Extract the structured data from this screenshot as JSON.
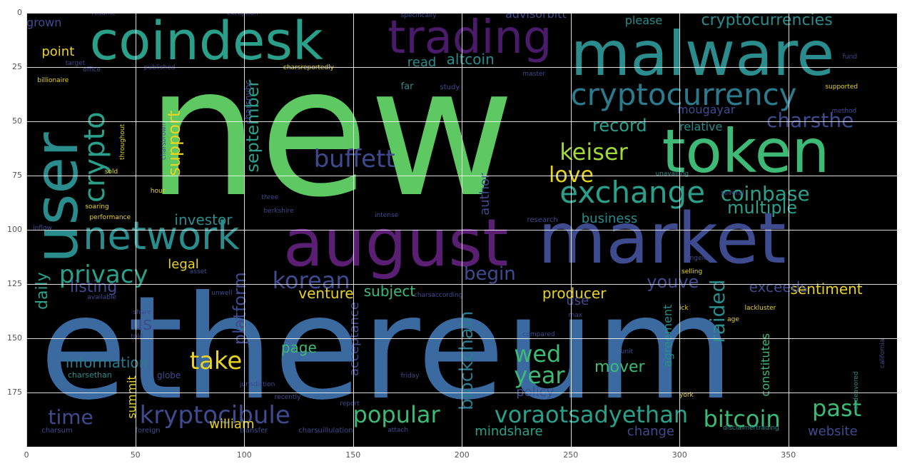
{
  "figure": {
    "colors": {
      "background": "#000000",
      "grid": "#ffffff",
      "tick_text": "#555555"
    },
    "x_ticks": [
      "0",
      "50",
      "100",
      "150",
      "200",
      "250",
      "300",
      "350"
    ],
    "y_ticks": [
      "0",
      "25",
      "50",
      "75",
      "100",
      "125",
      "150",
      "175"
    ],
    "x_range": [
      0,
      400
    ],
    "y_range": [
      0,
      200
    ],
    "grid": true,
    "words": [
      {
        "text": "new",
        "x": 55,
        "y": 14,
        "size": 250,
        "color": "#5ec962",
        "rot": 0
      },
      {
        "text": "ethereum",
        "x": 6,
        "y": 122,
        "size": 200,
        "color": "#3b6aa0",
        "rot": 0
      },
      {
        "text": "malware",
        "x": 250,
        "y": 5,
        "size": 86,
        "color": "#2a8c8c",
        "rot": 0
      },
      {
        "text": "market",
        "x": 235,
        "y": 88,
        "size": 98,
        "color": "#3f4b8f",
        "rot": 0
      },
      {
        "text": "august",
        "x": 118,
        "y": 91,
        "size": 92,
        "color": "#5a1f72",
        "rot": 0
      },
      {
        "text": "coindesk",
        "x": 29,
        "y": 1,
        "size": 74,
        "color": "#2aa08a",
        "rot": 0
      },
      {
        "text": "trading",
        "x": 166,
        "y": 1,
        "size": 64,
        "color": "#4a1a6b",
        "rot": 0
      },
      {
        "text": "token",
        "x": 292,
        "y": 50,
        "size": 84,
        "color": "#3dbb76",
        "rot": 0
      },
      {
        "text": "user",
        "x": 0,
        "y": 49,
        "size": 84,
        "color": "#2a8c8c",
        "rot": -90
      },
      {
        "text": "network",
        "x": 26,
        "y": 94,
        "size": 54,
        "color": "#2a8c8c",
        "rot": 0
      },
      {
        "text": "cryptocurrency",
        "x": 250,
        "y": 31,
        "size": 42,
        "color": "#2c7a8e",
        "rot": 0
      },
      {
        "text": "exchange",
        "x": 245,
        "y": 76,
        "size": 42,
        "color": "#2aa08a",
        "rot": 0
      },
      {
        "text": "crypto",
        "x": 25,
        "y": 40,
        "size": 40,
        "color": "#2aa08a",
        "rot": -90
      },
      {
        "text": "privacy",
        "x": 15,
        "y": 115,
        "size": 34,
        "color": "#2aa08a",
        "rot": 0
      },
      {
        "text": "buffett",
        "x": 132,
        "y": 62,
        "size": 34,
        "color": "#3f4b8f",
        "rot": 0
      },
      {
        "text": "keiser",
        "x": 245,
        "y": 59,
        "size": 32,
        "color": "#9fd938",
        "rot": 0
      },
      {
        "text": "love",
        "x": 240,
        "y": 70,
        "size": 30,
        "color": "#e8d31f",
        "rot": 0
      },
      {
        "text": "korean",
        "x": 113,
        "y": 118,
        "size": 32,
        "color": "#3f4b8f",
        "rot": 0
      },
      {
        "text": "take",
        "x": 75,
        "y": 155,
        "size": 34,
        "color": "#e8d31f",
        "rot": 0
      },
      {
        "text": "kryptocibule",
        "x": 52,
        "y": 180,
        "size": 34,
        "color": "#3f4b8f",
        "rot": 0
      },
      {
        "text": "popular",
        "x": 150,
        "y": 180,
        "size": 32,
        "color": "#3dbb76",
        "rot": 0
      },
      {
        "text": "voraotsadyethan",
        "x": 215,
        "y": 180,
        "size": 32,
        "color": "#2aa08a",
        "rot": 0
      },
      {
        "text": "bitcoin",
        "x": 311,
        "y": 182,
        "size": 32,
        "color": "#3dbb76",
        "rot": 0
      },
      {
        "text": "past",
        "x": 361,
        "y": 177,
        "size": 32,
        "color": "#3dbb76",
        "rot": 0
      },
      {
        "text": "year",
        "x": 224,
        "y": 162,
        "size": 32,
        "color": "#3dbb76",
        "rot": 0
      },
      {
        "text": "wed",
        "x": 224,
        "y": 152,
        "size": 32,
        "color": "#3dbb76",
        "rot": 0
      },
      {
        "text": "time",
        "x": 10,
        "y": 182,
        "size": 28,
        "color": "#3f4b8f",
        "rot": 0
      },
      {
        "text": "coinbase",
        "x": 319,
        "y": 79,
        "size": 28,
        "color": "#2aa08a",
        "rot": 0
      },
      {
        "text": "multiple",
        "x": 322,
        "y": 86,
        "size": 24,
        "color": "#2aa08a",
        "rot": 0
      },
      {
        "text": "charsthe",
        "x": 340,
        "y": 45,
        "size": 28,
        "color": "#3f4b8f",
        "rot": 0
      },
      {
        "text": "record",
        "x": 260,
        "y": 48,
        "size": 24,
        "color": "#2aa08a",
        "rot": 0
      },
      {
        "text": "support",
        "x": 64,
        "y": 42,
        "size": 24,
        "color": "#e8d31f",
        "rot": -90
      },
      {
        "text": "september",
        "x": 100,
        "y": 31,
        "size": 24,
        "color": "#2aa08a",
        "rot": -90
      },
      {
        "text": "blockchain",
        "x": 198,
        "y": 132,
        "size": 26,
        "color": "#2c7a8e",
        "rot": -90
      },
      {
        "text": "platform",
        "x": 94,
        "y": 115,
        "size": 24,
        "color": "#3f4b8f",
        "rot": -90
      },
      {
        "text": "raided",
        "x": 313,
        "y": 119,
        "size": 28,
        "color": "#2a8c8c",
        "rot": -90
      },
      {
        "text": "begin",
        "x": 201,
        "y": 116,
        "size": 26,
        "color": "#3f4b8f",
        "rot": 0
      },
      {
        "text": "youve",
        "x": 285,
        "y": 120,
        "size": 24,
        "color": "#3f4b8f",
        "rot": 0
      },
      {
        "text": "sentiment",
        "x": 351,
        "y": 124,
        "size": 20,
        "color": "#e8d31f",
        "rot": 0
      },
      {
        "text": "exceeds",
        "x": 332,
        "y": 123,
        "size": 20,
        "color": "#3f4b8f",
        "rot": 0
      },
      {
        "text": "producer",
        "x": 237,
        "y": 126,
        "size": 20,
        "color": "#e8d31f",
        "rot": 0
      },
      {
        "text": "venture",
        "x": 125,
        "y": 126,
        "size": 20,
        "color": "#e8d31f",
        "rot": 0
      },
      {
        "text": "subject",
        "x": 155,
        "y": 125,
        "size": 20,
        "color": "#3dbb76",
        "rot": 0
      },
      {
        "text": "listing",
        "x": 20,
        "y": 123,
        "size": 22,
        "color": "#3f4b8f",
        "rot": 0
      },
      {
        "text": "daily",
        "x": 4,
        "y": 115,
        "size": 22,
        "color": "#2aa08a",
        "rot": -90
      },
      {
        "text": "legal",
        "x": 65,
        "y": 113,
        "size": 18,
        "color": "#e8d31f",
        "rot": 0
      },
      {
        "text": "information",
        "x": 18,
        "y": 158,
        "size": 20,
        "color": "#2c7a8e",
        "rot": 0
      },
      {
        "text": "investor",
        "x": 68,
        "y": 92,
        "size": 20,
        "color": "#2a8c8c",
        "rot": 0
      },
      {
        "text": "page",
        "x": 117,
        "y": 151,
        "size": 20,
        "color": "#3dbb76",
        "rot": 0
      },
      {
        "text": "mover",
        "x": 261,
        "y": 160,
        "size": 22,
        "color": "#3dbb76",
        "rot": 0
      },
      {
        "text": "policy",
        "x": 225,
        "y": 172,
        "size": 18,
        "color": "#3f4b8f",
        "rot": 0
      },
      {
        "text": "mindshare",
        "x": 206,
        "y": 190,
        "size": 18,
        "color": "#2aa08a",
        "rot": 0
      },
      {
        "text": "change",
        "x": 276,
        "y": 190,
        "size": 18,
        "color": "#3f4b8f",
        "rot": 0
      },
      {
        "text": "website",
        "x": 359,
        "y": 190,
        "size": 18,
        "color": "#3f4b8f",
        "rot": 0
      },
      {
        "text": "william",
        "x": 84,
        "y": 187,
        "size": 18,
        "color": "#e8d31f",
        "rot": 0
      },
      {
        "text": "us",
        "x": 48,
        "y": 139,
        "size": 26,
        "color": "#3f4b8f",
        "rot": 0
      },
      {
        "text": "business",
        "x": 255,
        "y": 92,
        "size": 18,
        "color": "#2a8c8c",
        "rot": 0
      },
      {
        "text": "use",
        "x": 248,
        "y": 130,
        "size": 18,
        "color": "#3f4b8f",
        "rot": 0
      },
      {
        "text": "relative",
        "x": 300,
        "y": 50,
        "size": 16,
        "color": "#2a8c8c",
        "rot": 0
      },
      {
        "text": "mougayar",
        "x": 299,
        "y": 42,
        "size": 16,
        "color": "#3f4b8f",
        "rot": 0
      },
      {
        "text": "cryptocurrencies",
        "x": 310,
        "y": 0,
        "size": 22,
        "color": "#2a8c8c",
        "rot": 0
      },
      {
        "text": "please",
        "x": 275,
        "y": 1,
        "size": 16,
        "color": "#2a8c8c",
        "rot": 0
      },
      {
        "text": "advisorbitt",
        "x": 220,
        "y": -2,
        "size": 16,
        "color": "#3f4b8f",
        "rot": 0
      },
      {
        "text": "altcoin",
        "x": 193,
        "y": 18,
        "size": 20,
        "color": "#2a8c8c",
        "rot": 0
      },
      {
        "text": "read",
        "x": 175,
        "y": 20,
        "size": 18,
        "color": "#2a8c8c",
        "rot": 0
      },
      {
        "text": "point",
        "x": 7,
        "y": 15,
        "size": 18,
        "color": "#e8d31f",
        "rot": 0
      },
      {
        "text": "grown",
        "x": 0,
        "y": 2,
        "size": 16,
        "color": "#3f4b8f",
        "rot": 0
      },
      {
        "text": "author",
        "x": 208,
        "y": 72,
        "size": 18,
        "color": "#3f4b8f",
        "rot": -90
      },
      {
        "text": "acceptance",
        "x": 148,
        "y": 132,
        "size": 18,
        "color": "#3f4b8f",
        "rot": -90
      },
      {
        "text": "agreement",
        "x": 292,
        "y": 135,
        "size": 16,
        "color": "#2a8c8c",
        "rot": -90
      },
      {
        "text": "constitutes",
        "x": 337,
        "y": 142,
        "size": 16,
        "color": "#3dbb76",
        "rot": -90
      },
      {
        "text": "summit",
        "x": 46,
        "y": 168,
        "size": 16,
        "color": "#e8d31f",
        "rot": -90
      },
      {
        "text": "charsnvbc",
        "x": 100,
        "y": 30,
        "size": 12,
        "color": "#3f4b8f",
        "rot": -90
      },
      {
        "text": "far",
        "x": 172,
        "y": 32,
        "size": 13,
        "color": "#2a8c8c",
        "rot": 0
      },
      {
        "text": "study",
        "x": 190,
        "y": 33,
        "size": 10,
        "color": "#3f4b8f",
        "rot": 0
      },
      {
        "text": "research",
        "x": 230,
        "y": 94,
        "size": 10,
        "color": "#3f4b8f",
        "rot": 0
      },
      {
        "text": "billionaire",
        "x": 5,
        "y": 30,
        "size": 9,
        "color": "#e8d31f",
        "rot": 0
      },
      {
        "text": "inflow",
        "x": 3,
        "y": 98,
        "size": 9,
        "color": "#3f4b8f",
        "rot": 0
      },
      {
        "text": "soaring",
        "x": 27,
        "y": 88,
        "size": 9,
        "color": "#e8d31f",
        "rot": 0
      },
      {
        "text": "performance",
        "x": 29,
        "y": 93,
        "size": 9,
        "color": "#e8d31f",
        "rot": 0
      },
      {
        "text": "available",
        "x": 28,
        "y": 130,
        "size": 9,
        "color": "#3f4b8f",
        "rot": 0
      },
      {
        "text": "share",
        "x": 49,
        "y": 137,
        "size": 9,
        "color": "#3f4b8f",
        "rot": 0
      },
      {
        "text": "globe",
        "x": 60,
        "y": 165,
        "size": 12,
        "color": "#3f4b8f",
        "rot": 0
      },
      {
        "text": "charsethan",
        "x": 19,
        "y": 165,
        "size": 11,
        "color": "#2a8c8c",
        "rot": 0
      },
      {
        "text": "foreign",
        "x": 50,
        "y": 191,
        "size": 10,
        "color": "#3f4b8f",
        "rot": 0
      },
      {
        "text": "charsum",
        "x": 7,
        "y": 191,
        "size": 10,
        "color": "#3f4b8f",
        "rot": 0
      },
      {
        "text": "transfer",
        "x": 98,
        "y": 191,
        "size": 10,
        "color": "#3f4b8f",
        "rot": 0
      },
      {
        "text": "charsuillulation",
        "x": 125,
        "y": 191,
        "size": 10,
        "color": "#3f4b8f",
        "rot": 0
      },
      {
        "text": "attach",
        "x": 166,
        "y": 191,
        "size": 9,
        "color": "#3f4b8f",
        "rot": 0
      },
      {
        "text": "report",
        "x": 144,
        "y": 179,
        "size": 9,
        "color": "#3f4b8f",
        "rot": 0
      },
      {
        "text": "friday",
        "x": 172,
        "y": 166,
        "size": 9,
        "color": "#3f4b8f",
        "rot": 0
      },
      {
        "text": "jurisdiction",
        "x": 98,
        "y": 170,
        "size": 9,
        "color": "#3f4b8f",
        "rot": 0
      },
      {
        "text": "recently",
        "x": 114,
        "y": 176,
        "size": 9,
        "color": "#3f4b8f",
        "rot": 0
      },
      {
        "text": "charsaccording",
        "x": 178,
        "y": 129,
        "size": 9,
        "color": "#3f4b8f",
        "rot": 0
      },
      {
        "text": "compared",
        "x": 228,
        "y": 147,
        "size": 9,
        "color": "#3f4b8f",
        "rot": 0
      },
      {
        "text": "max",
        "x": 249,
        "y": 138,
        "size": 9,
        "color": "#3f4b8f",
        "rot": 0
      },
      {
        "text": "ick",
        "x": 300,
        "y": 135,
        "size": 9,
        "color": "#e8d31f",
        "rot": 0
      },
      {
        "text": "lackluster",
        "x": 330,
        "y": 135,
        "size": 9,
        "color": "#e8d31f",
        "rot": 0
      },
      {
        "text": "age",
        "x": 322,
        "y": 140,
        "size": 9,
        "color": "#e8d31f",
        "rot": 0
      },
      {
        "text": "angeles",
        "x": 303,
        "y": 112,
        "size": 9,
        "color": "#3f4b8f",
        "rot": 0
      },
      {
        "text": "selling",
        "x": 301,
        "y": 118,
        "size": 9,
        "color": "#e8d31f",
        "rot": 0
      },
      {
        "text": "unavailing",
        "x": 289,
        "y": 73,
        "size": 9,
        "color": "#2a8c8c",
        "rot": 0
      },
      {
        "text": "several",
        "x": 319,
        "y": 82,
        "size": 9,
        "color": "#3f4b8f",
        "rot": 0
      },
      {
        "text": "supported",
        "x": 367,
        "y": 33,
        "size": 9,
        "color": "#e8d31f",
        "rot": 0
      },
      {
        "text": "method",
        "x": 370,
        "y": 44,
        "size": 9,
        "color": "#3f4b8f",
        "rot": 0
      },
      {
        "text": "fund",
        "x": 375,
        "y": 19,
        "size": 9,
        "color": "#3f4b8f",
        "rot": 0
      },
      {
        "text": "master",
        "x": 228,
        "y": 27,
        "size": 9,
        "color": "#3f4b8f",
        "rot": 0
      },
      {
        "text": "resume",
        "x": 30,
        "y": -1,
        "size": 9,
        "color": "#3f4b8f",
        "rot": 0
      },
      {
        "text": "exception",
        "x": 92,
        "y": -1,
        "size": 9,
        "color": "#3f4b8f",
        "rot": 0
      },
      {
        "text": "specifically",
        "x": 172,
        "y": 0,
        "size": 9,
        "color": "#3f4b8f",
        "rot": 0
      },
      {
        "text": "published",
        "x": 54,
        "y": 24,
        "size": 9,
        "color": "#3f4b8f",
        "rot": 0
      },
      {
        "text": "charsreportedly",
        "x": 118,
        "y": 24,
        "size": 9,
        "color": "#e8d31f",
        "rot": 0
      },
      {
        "text": "target",
        "x": 18,
        "y": 22,
        "size": 9,
        "color": "#3f4b8f",
        "rot": 0
      },
      {
        "text": "office",
        "x": 26,
        "y": 25,
        "size": 9,
        "color": "#3f4b8f",
        "rot": 0
      },
      {
        "text": "throughout",
        "x": 43,
        "y": 50,
        "size": 9,
        "color": "#e8d31f",
        "rot": -90
      },
      {
        "text": "charsbrown",
        "x": 62,
        "y": 50,
        "size": 9,
        "color": "#3f4b8f",
        "rot": -90
      },
      {
        "text": "three",
        "x": 108,
        "y": 84,
        "size": 9,
        "color": "#3f4b8f",
        "rot": 0
      },
      {
        "text": "berkshire",
        "x": 109,
        "y": 90,
        "size": 9,
        "color": "#3f4b8f",
        "rot": 0
      },
      {
        "text": "intense",
        "x": 160,
        "y": 92,
        "size": 9,
        "color": "#3f4b8f",
        "rot": 0
      },
      {
        "text": "hour",
        "x": 57,
        "y": 81,
        "size": 9,
        "color": "#e8d31f",
        "rot": 0
      },
      {
        "text": "sold",
        "x": 36,
        "y": 72,
        "size": 9,
        "color": "#e8d31f",
        "rot": 0
      },
      {
        "text": "told",
        "x": 48,
        "y": 148,
        "size": 9,
        "color": "#3f4b8f",
        "rot": 0
      },
      {
        "text": "unwell",
        "x": 85,
        "y": 128,
        "size": 9,
        "color": "#3f4b8f",
        "rot": 0
      },
      {
        "text": "asset",
        "x": 75,
        "y": 118,
        "size": 9,
        "color": "#3f4b8f",
        "rot": 0
      },
      {
        "text": "california",
        "x": 392,
        "y": 146,
        "size": 9,
        "color": "#3f4b8f",
        "rot": -90
      },
      {
        "text": "endeavored",
        "x": 380,
        "y": 165,
        "size": 9,
        "color": "#2a8c8c",
        "rot": -90
      },
      {
        "text": "disclaimertrading",
        "x": 320,
        "y": 190,
        "size": 9,
        "color": "#2a8c8c",
        "rot": 0
      },
      {
        "text": "york",
        "x": 300,
        "y": 175,
        "size": 9,
        "color": "#e8d31f",
        "rot": 0
      },
      {
        "text": "unit",
        "x": 273,
        "y": 155,
        "size": 9,
        "color": "#3f4b8f",
        "rot": 0
      }
    ]
  }
}
